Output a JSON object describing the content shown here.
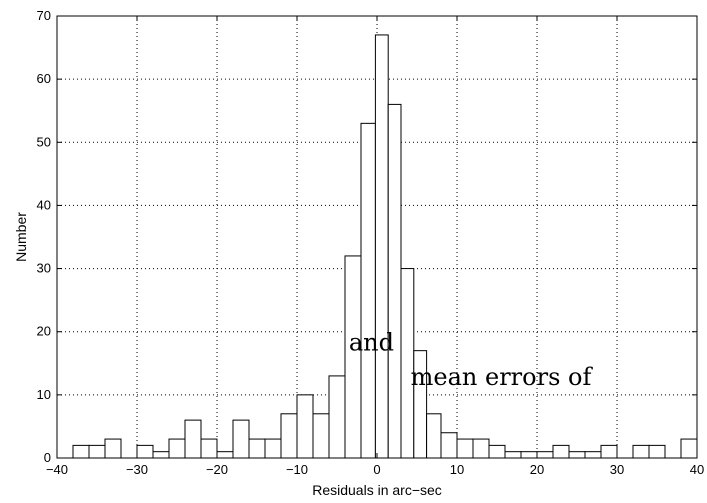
{
  "chart_data": {
    "type": "bar",
    "xlabel": "Residuals in arc−sec",
    "ylabel": "Number",
    "xlim": [
      -40,
      40
    ],
    "ylim": [
      0,
      70
    ],
    "grid": true,
    "x_ticks": [
      -40,
      -30,
      -20,
      -10,
      0,
      10,
      20,
      30,
      40
    ],
    "y_ticks": [
      0,
      10,
      20,
      30,
      40,
      50,
      60,
      70
    ],
    "bin_width": 2,
    "bins": [
      {
        "x": -37,
        "value": 2
      },
      {
        "x": -35,
        "value": 2
      },
      {
        "x": -33,
        "value": 3
      },
      {
        "x": -31,
        "value": 0
      },
      {
        "x": -29,
        "value": 2
      },
      {
        "x": -27,
        "value": 1
      },
      {
        "x": -25,
        "value": 3
      },
      {
        "x": -23,
        "value": 6
      },
      {
        "x": -21,
        "value": 3
      },
      {
        "x": -19,
        "value": 1
      },
      {
        "x": -17,
        "value": 6
      },
      {
        "x": -15,
        "value": 3
      },
      {
        "x": -13,
        "value": 3
      },
      {
        "x": -11,
        "value": 7
      },
      {
        "x": -9,
        "value": 10
      },
      {
        "x": -7,
        "value": 7
      },
      {
        "x": -5,
        "value": 13
      },
      {
        "x": -3,
        "value": 32
      },
      {
        "x": -1,
        "value": 53
      },
      {
        "x": 0.6,
        "value": 67
      },
      {
        "x": 2.2,
        "value": 56
      },
      {
        "x": 3.8,
        "value": 30
      },
      {
        "x": 5.4,
        "value": 17
      },
      {
        "x": 7,
        "value": 7
      },
      {
        "x": 9,
        "value": 4
      },
      {
        "x": 11,
        "value": 3
      },
      {
        "x": 13,
        "value": 3
      },
      {
        "x": 15,
        "value": 2
      },
      {
        "x": 17,
        "value": 1
      },
      {
        "x": 19,
        "value": 1
      },
      {
        "x": 21,
        "value": 1
      },
      {
        "x": 23,
        "value": 2
      },
      {
        "x": 25,
        "value": 1
      },
      {
        "x": 27,
        "value": 1
      },
      {
        "x": 29,
        "value": 2
      },
      {
        "x": 31,
        "value": 0
      },
      {
        "x": 33,
        "value": 2
      },
      {
        "x": 35,
        "value": 2
      },
      {
        "x": 37,
        "value": 0
      },
      {
        "x": 39,
        "value": 3
      }
    ],
    "annotations": [
      {
        "text": "and",
        "x": -0.7,
        "y": 17
      },
      {
        "text": "mean errors of",
        "x": 15.5,
        "y": 11.6
      }
    ]
  }
}
